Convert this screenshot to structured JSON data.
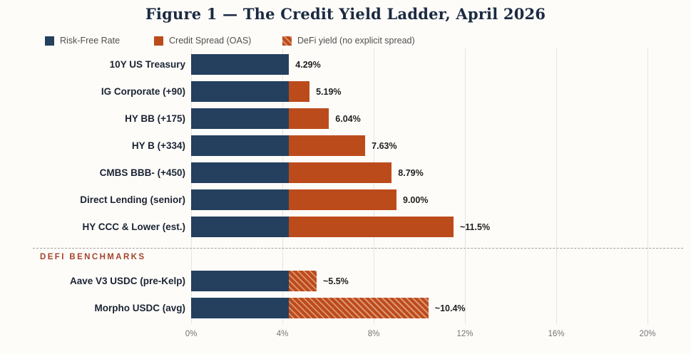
{
  "title": "Figure 1 — The Credit Yield Ladder, April 2026",
  "legend": [
    {
      "label": "Risk-Free Rate",
      "swatch": "navy-solid"
    },
    {
      "label": "Credit Spread (OAS)",
      "swatch": "orange-solid"
    },
    {
      "label": "DeFi yield (no explicit spread)",
      "swatch": "orange-hatched"
    }
  ],
  "section_divider_label": "DEFI BENCHMARKS",
  "colors": {
    "risk_free": "#24405e",
    "credit_spread": "#bc4b1c",
    "title_text": "#1b2a41",
    "section_label": "#a5432b",
    "axis_text": "#757575",
    "background": "#fdfcf9",
    "gridline": "#e7e4de"
  },
  "x_axis": {
    "ticks": [
      "0%",
      "4%",
      "8%",
      "12%",
      "16%",
      "20%"
    ],
    "tick_values": [
      0,
      4,
      8,
      12,
      16,
      20
    ],
    "max": 20
  },
  "chart_data": {
    "type": "bar",
    "orientation": "horizontal",
    "stacked": true,
    "title": "Figure 1 — The Credit Yield Ladder, April 2026",
    "xlabel": "",
    "ylabel": "",
    "xlim": [
      0,
      20
    ],
    "grid": true,
    "legend_position": "top-left",
    "series_names": [
      "Risk-Free Rate",
      "Credit Spread (OAS)",
      "DeFi yield (no explicit spread)"
    ],
    "rows": [
      {
        "category": "10Y US Treasury",
        "risk_free": 4.29,
        "spread": 0.0,
        "total": 4.29,
        "value_label": "4.29%",
        "hatched": false,
        "slot": 0,
        "section": "credit"
      },
      {
        "category": "IG Corporate (+90)",
        "risk_free": 4.29,
        "spread": 0.9,
        "total": 5.19,
        "value_label": "5.19%",
        "hatched": false,
        "slot": 1,
        "section": "credit"
      },
      {
        "category": "HY BB (+175)",
        "risk_free": 4.29,
        "spread": 1.75,
        "total": 6.04,
        "value_label": "6.04%",
        "hatched": false,
        "slot": 2,
        "section": "credit"
      },
      {
        "category": "HY B (+334)",
        "risk_free": 4.29,
        "spread": 3.34,
        "total": 7.63,
        "value_label": "7.63%",
        "hatched": false,
        "slot": 3,
        "section": "credit"
      },
      {
        "category": "CMBS BBB- (+450)",
        "risk_free": 4.29,
        "spread": 4.5,
        "total": 8.79,
        "value_label": "8.79%",
        "hatched": false,
        "slot": 4,
        "section": "credit"
      },
      {
        "category": "Direct Lending (senior)",
        "risk_free": 4.29,
        "spread": 4.71,
        "total": 9.0,
        "value_label": "9.00%",
        "hatched": false,
        "slot": 5,
        "section": "credit"
      },
      {
        "category": "HY CCC & Lower (est.)",
        "risk_free": 4.29,
        "spread": 7.21,
        "total": 11.5,
        "value_label": "~11.5%",
        "hatched": false,
        "slot": 6,
        "section": "credit"
      },
      {
        "category": "Aave V3 USDC (pre-Kelp)",
        "risk_free": 4.29,
        "spread": 1.21,
        "total": 5.5,
        "value_label": "~5.5%",
        "hatched": true,
        "slot": 8,
        "section": "defi"
      },
      {
        "category": "Morpho USDC (avg)",
        "risk_free": 4.29,
        "spread": 6.11,
        "total": 10.4,
        "value_label": "~10.4%",
        "hatched": true,
        "slot": 9,
        "section": "defi"
      }
    ]
  }
}
